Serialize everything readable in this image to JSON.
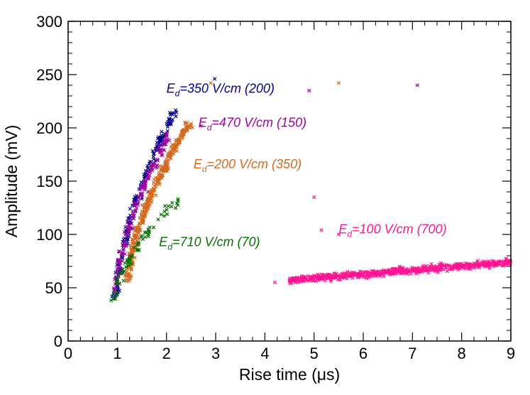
{
  "chart_data": {
    "type": "scatter",
    "title": "",
    "xlabel": "Rise time (μs)",
    "ylabel": "Amplitude (mV)",
    "xlim": [
      0,
      9
    ],
    "ylim": [
      0,
      300
    ],
    "x_ticks": [
      "0",
      "1",
      "2",
      "3",
      "4",
      "5",
      "6",
      "7",
      "8",
      "9"
    ],
    "y_ticks": [
      "0",
      "50",
      "100",
      "150",
      "200",
      "250",
      "300"
    ],
    "grid": false,
    "legend": "none",
    "marker": "x",
    "series": [
      {
        "label_prefix": "E",
        "label_sub": "d",
        "label_rest": "=350 V/cm (200)",
        "label_pos": [
          2.0,
          233
        ],
        "color": "#00008b",
        "cluster": {
          "x_range": [
            0.85,
            2.2
          ],
          "y_range": [
            40,
            215
          ],
          "count": 200
        },
        "outliers": [
          [
            2.98,
            246
          ]
        ]
      },
      {
        "label_prefix": "E",
        "label_sub": "d",
        "label_rest": "=470 V/cm (150)",
        "label_pos": [
          2.65,
          201
        ],
        "color": "#a000a0",
        "cluster": {
          "x_range": [
            0.85,
            2.1
          ],
          "y_range": [
            45,
            195
          ],
          "count": 150
        },
        "outliers": [
          [
            4.9,
            235
          ],
          [
            7.1,
            240
          ],
          [
            2.7,
            202
          ]
        ]
      },
      {
        "label_prefix": "E",
        "label_sub": "d",
        "label_rest": "=200 V/cm (350)",
        "label_pos": [
          2.55,
          162
        ],
        "color": "#d2691e",
        "cluster": {
          "x_range": [
            1.1,
            2.5
          ],
          "y_range": [
            55,
            205
          ],
          "count": 350
        },
        "outliers": [
          [
            2.9,
            242
          ],
          [
            5.5,
            242
          ]
        ]
      },
      {
        "label_prefix": "E",
        "label_sub": "d",
        "label_rest": "=710 V/cm (70)",
        "label_pos": [
          1.85,
          89
        ],
        "color": "#007000",
        "cluster": {
          "x_range": [
            0.8,
            2.3
          ],
          "y_range": [
            35,
            135
          ],
          "count": 70
        },
        "outliers": []
      },
      {
        "label_prefix": "E",
        "label_sub": "d",
        "label_rest": "=100 V/cm (700)",
        "label_pos": [
          5.5,
          101
        ],
        "color": "#ff1493",
        "cluster": {
          "x_range": [
            4.5,
            9.0
          ],
          "y_range": [
            48,
            85
          ],
          "count": 700
        },
        "outliers": [
          [
            5.0,
            135
          ],
          [
            5.15,
            104
          ],
          [
            4.2,
            55
          ],
          [
            5.5,
            100
          ]
        ]
      }
    ]
  }
}
